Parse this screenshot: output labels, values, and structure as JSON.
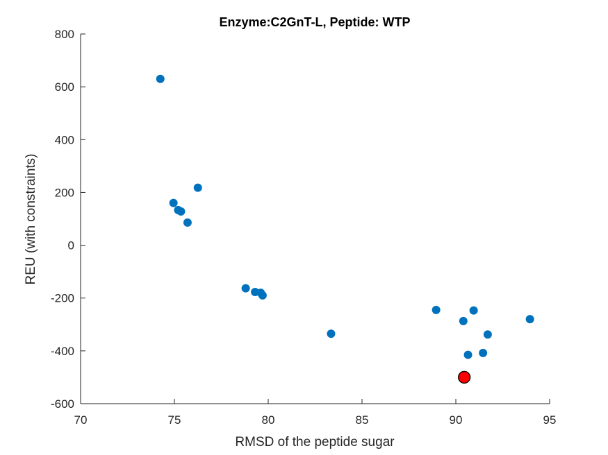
{
  "chart_data": {
    "type": "scatter",
    "title": "Enzyme:C2GnT-L, Peptide: WTP",
    "xlabel": "RMSD of the peptide sugar",
    "ylabel": "REU (with constraints)",
    "xlim": [
      70,
      95
    ],
    "ylim": [
      -600,
      800
    ],
    "xticks": [
      70,
      75,
      80,
      85,
      90,
      95
    ],
    "yticks": [
      -600,
      -400,
      -200,
      0,
      200,
      400,
      600,
      800
    ],
    "grid": false,
    "series": [
      {
        "color": "#0072BD",
        "points": [
          [
            74.25,
            630
          ],
          [
            76.25,
            218
          ],
          [
            74.95,
            160
          ],
          [
            75.2,
            133
          ],
          [
            75.35,
            128
          ],
          [
            75.7,
            86
          ],
          [
            78.8,
            -163
          ],
          [
            79.3,
            -177
          ],
          [
            79.6,
            -180
          ],
          [
            79.7,
            -190
          ],
          [
            83.35,
            -335
          ],
          [
            88.95,
            -245
          ],
          [
            90.4,
            -287
          ],
          [
            90.95,
            -247
          ],
          [
            93.95,
            -280
          ],
          [
            91.7,
            -338
          ],
          [
            90.65,
            -415
          ],
          [
            91.45,
            -408
          ]
        ]
      },
      {
        "color": "#FF0000",
        "edge_color": "#000000",
        "points": [
          [
            90.45,
            -500
          ]
        ]
      }
    ]
  }
}
